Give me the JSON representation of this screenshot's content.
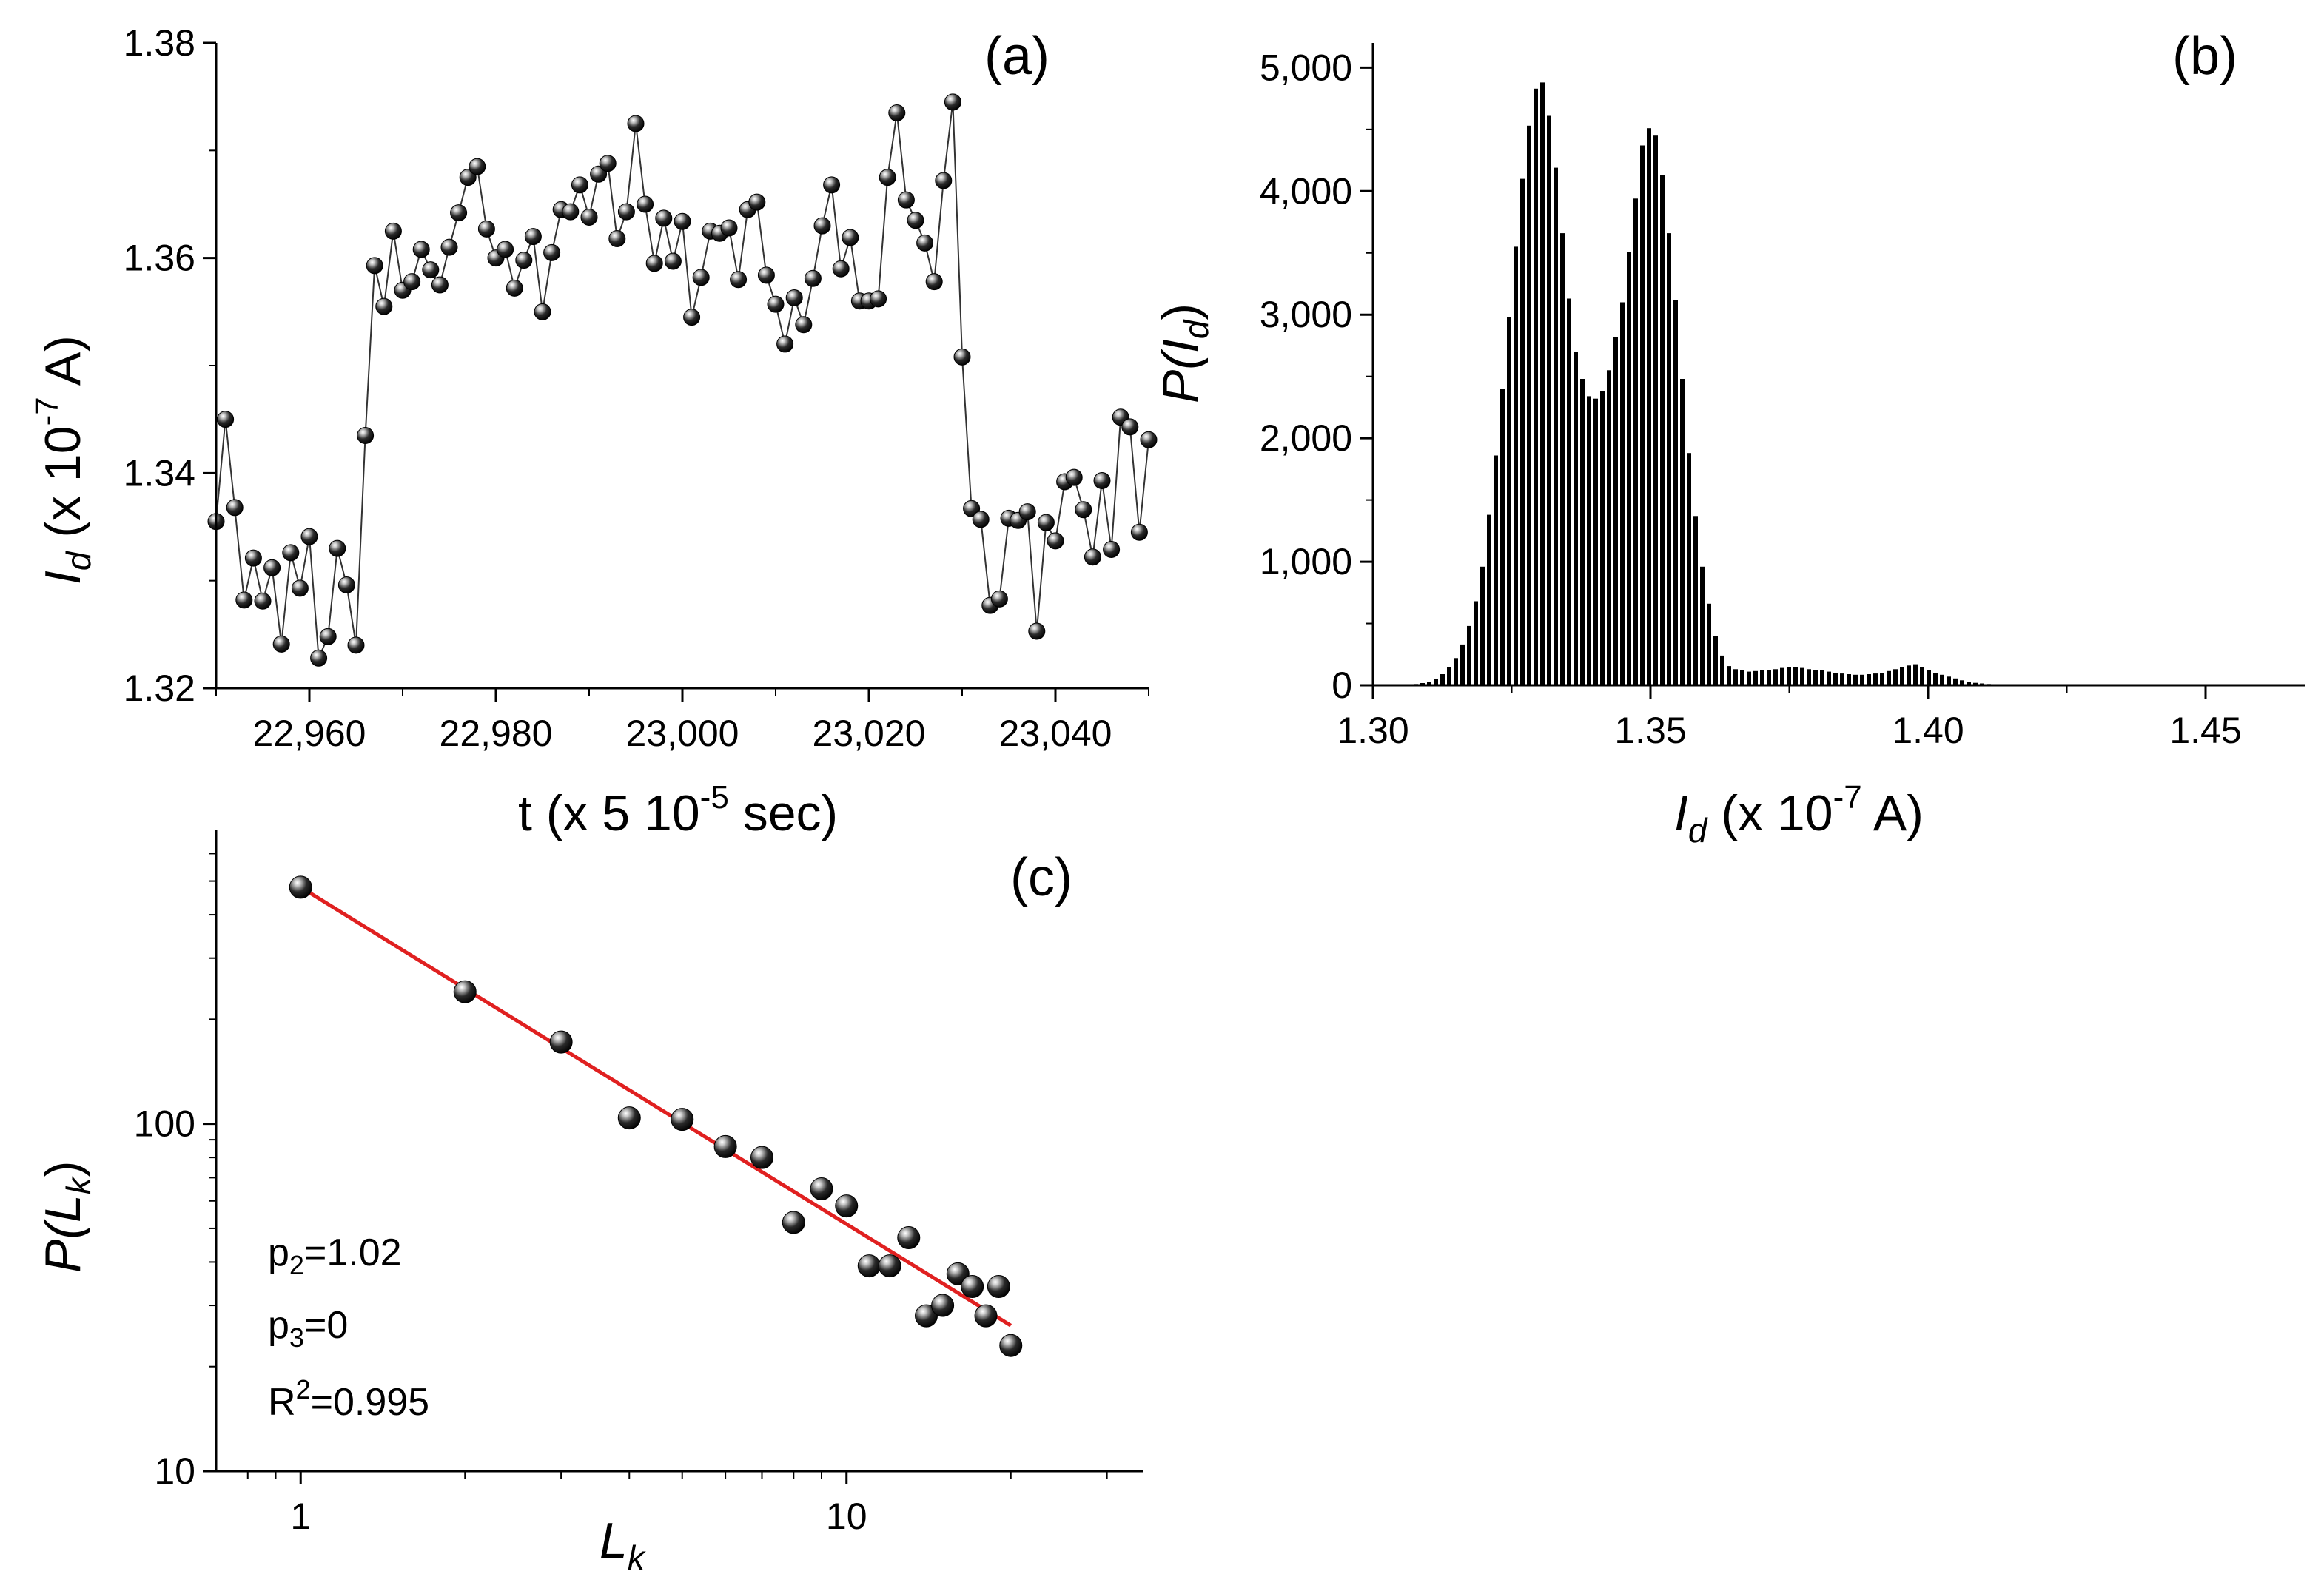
{
  "colors": {
    "ink": "#000000",
    "fit_line": "#e02020",
    "background": "#ffffff"
  },
  "chart_data": [
    {
      "id": "a",
      "type": "line",
      "panel_label": "(a)",
      "title": "",
      "xlabel": "t (x 5 10",
      "xlabel_sup": "-5",
      "xlabel_tail": " sec)",
      "ylabel_var": "I",
      "ylabel_sub": "d",
      "ylabel_mid": " (x 10",
      "ylabel_sup": "-7",
      "ylabel_tail": " A)",
      "xlim": [
        22950,
        23050
      ],
      "ylim": [
        1.32,
        1.38
      ],
      "xticks": [
        22960,
        22980,
        23000,
        23020,
        23040
      ],
      "xtick_labels": [
        "22,960",
        "22,980",
        "23,000",
        "23,020",
        "23,040"
      ],
      "yticks": [
        1.32,
        1.34,
        1.36,
        1.38
      ],
      "ytick_labels": [
        "1.32",
        "1.34",
        "1.36",
        "1.38"
      ],
      "marker": "sphere",
      "x_start": 22950,
      "x_step": 1,
      "values": [
        1.3355,
        1.345,
        1.3368,
        1.3282,
        1.3321,
        1.3281,
        1.3312,
        1.3241,
        1.3326,
        1.3293,
        1.3341,
        1.3228,
        1.3248,
        1.333,
        1.3296,
        1.324,
        1.3435,
        1.3593,
        1.3555,
        1.3625,
        1.357,
        1.3578,
        1.3608,
        1.3589,
        1.3575,
        1.361,
        1.3642,
        1.3675,
        1.3685,
        1.3627,
        1.36,
        1.3608,
        1.3572,
        1.3598,
        1.362,
        1.355,
        1.3605,
        1.3645,
        1.3643,
        1.3668,
        1.3638,
        1.3678,
        1.3688,
        1.3618,
        1.3643,
        1.3725,
        1.365,
        1.3595,
        1.3637,
        1.3597,
        1.3634,
        1.3545,
        1.3582,
        1.3625,
        1.3623,
        1.3628,
        1.358,
        1.3645,
        1.3652,
        1.3584,
        1.3557,
        1.352,
        1.3563,
        1.3538,
        1.3581,
        1.363,
        1.3668,
        1.359,
        1.3619,
        1.356,
        1.356,
        1.3562,
        1.3675,
        1.3735,
        1.3654,
        1.3635,
        1.3614,
        1.3578,
        1.3672,
        1.3745,
        1.3508,
        1.3367,
        1.3357,
        1.3277,
        1.3283,
        1.3358,
        1.3356,
        1.3364,
        1.3253,
        1.3354,
        1.3337,
        1.3392,
        1.3396,
        1.3366,
        1.3322,
        1.3393,
        1.3329,
        1.3452,
        1.3443,
        1.3345,
        1.3431
      ]
    },
    {
      "id": "b",
      "type": "bar",
      "panel_label": "(b)",
      "title": "",
      "xlabel_var": "I",
      "xlabel_sub": "d",
      "xlabel_mid": " (x 10",
      "xlabel_sup": "-7",
      "xlabel_tail": " A)",
      "ylabel_pre": "P(I",
      "ylabel_sub": "d",
      "ylabel_post": ")",
      "xlim": [
        1.3,
        1.468
      ],
      "ylim": [
        0,
        5200
      ],
      "xticks": [
        1.3,
        1.35,
        1.4,
        1.45
      ],
      "xtick_labels": [
        "1.30",
        "1.35",
        "1.40",
        "1.45"
      ],
      "yticks": [
        0,
        1000,
        2000,
        3000,
        4000,
        5000
      ],
      "ytick_labels": [
        "0",
        "1,000",
        "2,000",
        "3,000",
        "4,000",
        "5,000"
      ],
      "bin_start": 1.3,
      "bin_width": 0.0012,
      "values": [
        0,
        0,
        0,
        0,
        0,
        5,
        10,
        18,
        30,
        50,
        90,
        150,
        220,
        330,
        480,
        680,
        960,
        1380,
        1860,
        2400,
        2980,
        3550,
        4100,
        4530,
        4830,
        4880,
        4610,
        4190,
        3660,
        3130,
        2700,
        2480,
        2340,
        2320,
        2380,
        2550,
        2820,
        3100,
        3510,
        3940,
        4370,
        4510,
        4450,
        4130,
        3660,
        3120,
        2480,
        1880,
        1370,
        960,
        660,
        400,
        240,
        155,
        130,
        120,
        110,
        115,
        120,
        125,
        130,
        140,
        150,
        150,
        140,
        130,
        125,
        120,
        110,
        100,
        95,
        90,
        85,
        85,
        90,
        95,
        100,
        115,
        130,
        150,
        160,
        170,
        150,
        120,
        100,
        85,
        70,
        55,
        40,
        30,
        20,
        15,
        10,
        8,
        5,
        3,
        2,
        0,
        0,
        0
      ]
    },
    {
      "id": "c",
      "type": "scatter",
      "panel_label": "(c)",
      "title": "",
      "xlabel_var": "L",
      "xlabel_sub": "k",
      "ylabel_pre": "P(L",
      "ylabel_sub": "k",
      "ylabel_post": ")",
      "x_scale": "log",
      "y_scale": "log",
      "xlim": [
        0.7,
        35
      ],
      "ylim": [
        10,
        700
      ],
      "xticks": [
        1,
        10
      ],
      "xtick_labels": [
        "1",
        "10"
      ],
      "yticks": [
        10,
        100
      ],
      "ytick_labels": [
        "10",
        "100"
      ],
      "x": [
        1,
        2,
        3,
        4,
        5,
        6,
        7,
        8,
        9,
        10,
        11,
        12,
        13,
        14,
        15,
        16,
        17,
        18,
        19,
        20
      ],
      "y": [
        480,
        240,
        172,
        104,
        103,
        86,
        80,
        52,
        65,
        58,
        39,
        39,
        47,
        28,
        30,
        37,
        34,
        28,
        34,
        23
      ],
      "fit": {
        "type": "power_law",
        "x_range": [
          1,
          20
        ],
        "y_at_1": 480,
        "exponent": -0.97
      },
      "annotations": {
        "p2_base": "p",
        "p2_sub": "2",
        "p2_val": "=1.02",
        "p3_base": "p",
        "p3_sub": "3",
        "p3_val": "=0",
        "r2_base": "R",
        "r2_sup": "2",
        "r2_val": "=0.995"
      }
    }
  ]
}
